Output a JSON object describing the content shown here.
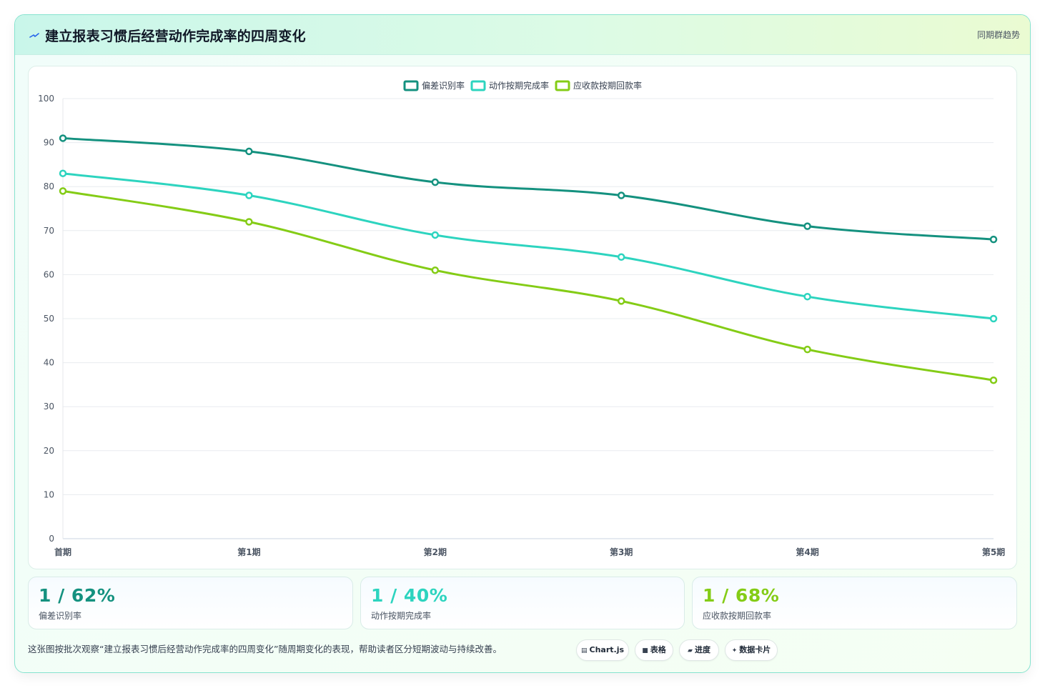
{
  "header": {
    "title": "建立报表习惯后经营动作完成率的四周变化",
    "tag": "同期群趋势"
  },
  "colors": {
    "series1": "#14917f",
    "series2": "#2dd4bf",
    "series3": "#84cc16",
    "grid": "#e8ecef",
    "axis_text": "#4b5563"
  },
  "chart_data": {
    "type": "line",
    "categories": [
      "首期",
      "第1期",
      "第2期",
      "第3期",
      "第4期",
      "第5期"
    ],
    "series": [
      {
        "name": "偏差识别率",
        "values": [
          91,
          88,
          81,
          78,
          71,
          68
        ]
      },
      {
        "name": "动作按期完成率",
        "values": [
          83,
          78,
          69,
          64,
          55,
          50
        ]
      },
      {
        "name": "应收款按期回款率",
        "values": [
          79,
          72,
          61,
          54,
          43,
          36
        ]
      }
    ],
    "ylim": [
      0,
      100
    ],
    "yticks": [
      "0",
      "10",
      "20",
      "30",
      "40",
      "50",
      "60",
      "70",
      "80",
      "90",
      "100"
    ],
    "grid": true,
    "legend": "top-center"
  },
  "stats": [
    {
      "value": "1 / 62%",
      "label": "偏差识别率"
    },
    {
      "value": "1 / 40%",
      "label": "动作按期完成率"
    },
    {
      "value": "1 / 68%",
      "label": "应收款按期回款率"
    }
  ],
  "footnote": "这张图按批次观察“建立报表习惯后经营动作完成率的四周变化”随周期变化的表现，帮助读者区分短期波动与持续改善。",
  "pills": [
    {
      "icon": "chart-icon",
      "glyph": "▤",
      "label": "Chart.js"
    },
    {
      "icon": "table-icon",
      "glyph": "■",
      "label": "表格"
    },
    {
      "icon": "progress-icon",
      "glyph": "▰",
      "label": "进度"
    },
    {
      "icon": "sparkle-icon",
      "glyph": "✦",
      "label": "数据卡片"
    }
  ]
}
